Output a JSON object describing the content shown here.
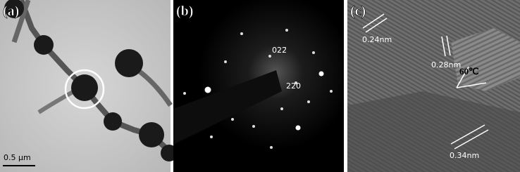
{
  "panels": [
    {
      "label": "(a)",
      "scale_bar": "0.5 μm"
    },
    {
      "label": "(b)",
      "spots": [
        "022̄",
        "220"
      ]
    },
    {
      "label": "(c)",
      "annotations": [
        "0.24nm",
        "0.28nm",
        "60℃",
        "0.34nm"
      ]
    }
  ]
}
